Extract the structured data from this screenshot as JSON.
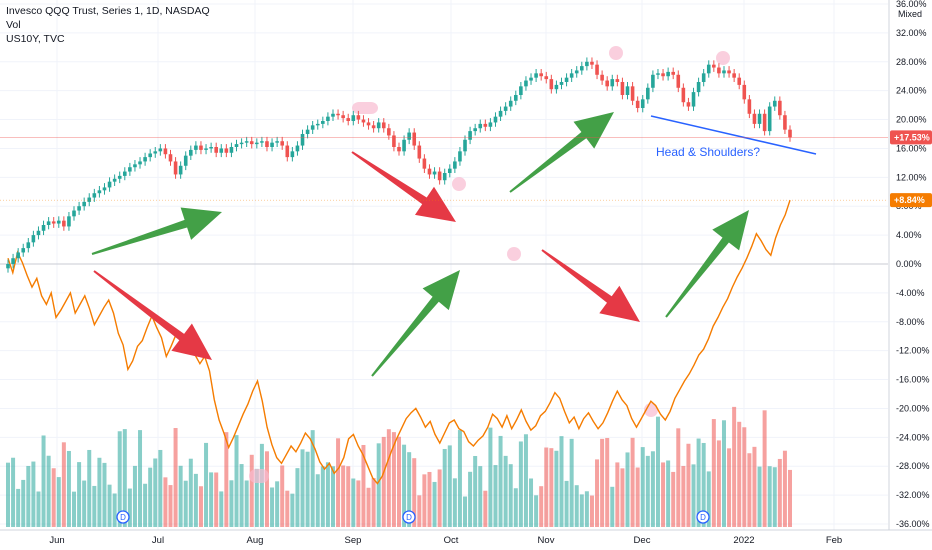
{
  "legend": {
    "symbol_line": "Invesco QQQ Trust, Series 1, 1D, NASDAQ",
    "volume_line": "Vol",
    "compare_line": "US10Y, TVC"
  },
  "scale_mode": "Mixed",
  "annotation": "Head & Shoulders?",
  "dividend_marker": "D",
  "colors": {
    "up": "#26a69a",
    "down": "#ef5350",
    "compare_line": "#f57c00",
    "trendline": "#2962ff",
    "arrow_up": "#43a047",
    "arrow_down": "#e53945",
    "highlight": "#f8bbd0"
  },
  "chart_data": {
    "type": "line",
    "x_ticks": [
      "Jun",
      "Jul",
      "Aug",
      "Sep",
      "Oct",
      "Nov",
      "Dec",
      "2022",
      "Feb"
    ],
    "y_ticks": [
      "36.00%",
      "32.00%",
      "28.00%",
      "24.00%",
      "20.00%",
      "16.00%",
      "12.00%",
      "8.00%",
      "4.00%",
      "0.00%",
      "-4.00%",
      "-8.00%",
      "-12.00%",
      "-16.00%",
      "-20.00%",
      "-24.00%",
      "-28.00%",
      "-32.00%",
      "-36.00%"
    ],
    "ylim": [
      -36,
      36
    ],
    "last_values": [
      {
        "series": "Invesco QQQ Trust, Series 1, 1D, NASDAQ",
        "label": "+17.53%"
      },
      {
        "series": "US10Y, TVC",
        "label": "+8.84%"
      }
    ],
    "series": [
      {
        "name": "Invesco QQQ Trust, Series 1, 1D, NASDAQ",
        "style": "candles",
        "values": [
          0.0,
          0.8,
          1.6,
          2.2,
          3.0,
          4.0,
          4.6,
          5.4,
          5.9,
          5.6,
          6.0,
          5.2,
          6.6,
          7.4,
          8.0,
          8.6,
          9.2,
          9.8,
          10.2,
          10.6,
          11.4,
          11.8,
          12.2,
          12.8,
          13.4,
          13.8,
          14.2,
          14.8,
          15.3,
          15.6,
          16.0,
          15.2,
          14.2,
          12.4,
          13.6,
          15.0,
          15.8,
          16.4,
          15.8,
          16.0,
          16.2,
          15.4,
          16.0,
          15.4,
          16.2,
          16.6,
          16.8,
          17.0,
          16.6,
          16.8,
          17.0,
          16.2,
          16.8,
          17.0,
          16.4,
          14.8,
          15.6,
          16.4,
          18.0,
          18.6,
          19.2,
          19.4,
          19.8,
          20.4,
          20.8,
          20.6,
          20.2,
          19.8,
          20.6,
          20.0,
          19.6,
          19.2,
          18.8,
          19.6,
          18.8,
          17.8,
          16.2,
          15.6,
          17.2,
          18.2,
          16.4,
          14.6,
          13.2,
          12.4,
          12.8,
          11.6,
          12.6,
          13.2,
          14.2,
          15.6,
          17.2,
          18.4,
          18.8,
          19.4,
          19.0,
          19.6,
          20.4,
          21.2,
          21.8,
          22.6,
          23.4,
          24.6,
          25.4,
          25.8,
          26.4,
          26.0,
          25.6,
          24.2,
          24.8,
          25.2,
          25.8,
          26.4,
          26.8,
          27.4,
          28.0,
          27.6,
          26.2,
          25.4,
          24.6,
          25.6,
          25.2,
          23.4,
          24.6,
          22.6,
          21.6,
          22.8,
          24.4,
          26.2,
          26.4,
          26.0,
          26.6,
          26.2,
          24.4,
          22.4,
          21.8,
          23.8,
          25.2,
          26.4,
          27.6,
          27.2,
          26.4,
          26.8,
          26.4,
          25.8,
          24.8,
          22.8,
          20.8,
          19.4,
          20.8,
          18.4,
          21.8,
          22.6,
          20.6,
          18.6,
          17.53
        ]
      },
      {
        "name": "US10Y, TVC",
        "style": "line",
        "values": [
          0.8,
          -1.2,
          1.6,
          0.2,
          -1.6,
          -3.2,
          -2.0,
          -4.4,
          -5.6,
          -4.0,
          -7.4,
          -6.4,
          -5.2,
          -4.0,
          -6.8,
          -5.6,
          -4.4,
          -6.2,
          -8.4,
          -7.2,
          -6.0,
          -5.0,
          -6.8,
          -9.6,
          -11.2,
          -14.6,
          -13.4,
          -11.4,
          -10.6,
          -8.8,
          -7.2,
          -8.8,
          -10.2,
          -12.8,
          -11.4,
          -9.8,
          -10.6,
          -12.2,
          -11.0,
          -12.6,
          -13.8,
          -12.8,
          -14.8,
          -18.8,
          -21.6,
          -23.4,
          -25.4,
          -24.0,
          -22.4,
          -20.8,
          -19.4,
          -17.6,
          -16.2,
          -19.0,
          -22.6,
          -25.0,
          -26.8,
          -27.6,
          -26.4,
          -25.2,
          -26.0,
          -24.8,
          -23.4,
          -24.2,
          -25.6,
          -27.4,
          -28.4,
          -27.6,
          -29.0,
          -28.2,
          -26.8,
          -24.2,
          -23.6,
          -25.2,
          -26.4,
          -28.0,
          -29.6,
          -30.4,
          -29.4,
          -27.6,
          -25.8,
          -24.2,
          -22.8,
          -21.4,
          -20.6,
          -20.0,
          -21.2,
          -22.6,
          -21.8,
          -23.6,
          -24.8,
          -23.4,
          -22.0,
          -21.6,
          -22.8,
          -23.2,
          -24.6,
          -25.2,
          -24.4,
          -23.8,
          -22.6,
          -20.8,
          -21.4,
          -22.6,
          -21.0,
          -22.8,
          -21.6,
          -20.2,
          -21.8,
          -23.0,
          -22.4,
          -21.0,
          -20.4,
          -19.2,
          -17.8,
          -18.6,
          -20.4,
          -22.0,
          -21.2,
          -22.8,
          -21.4,
          -20.6,
          -21.8,
          -22.8,
          -22.0,
          -20.6,
          -19.0,
          -17.6,
          -18.8,
          -19.6,
          -21.4,
          -22.6,
          -21.4,
          -20.2,
          -19.0,
          -19.6,
          -20.8,
          -21.6,
          -20.4,
          -18.6,
          -17.4,
          -16.2,
          -15.2,
          -14.0,
          -12.6,
          -11.8,
          -10.4,
          -8.6,
          -7.4,
          -6.0,
          -4.8,
          -3.2,
          -1.8,
          -0.6,
          0.8,
          2.4,
          4.2,
          3.2,
          2.0,
          1.2,
          3.6,
          5.4,
          6.8,
          8.84
        ]
      }
    ]
  }
}
